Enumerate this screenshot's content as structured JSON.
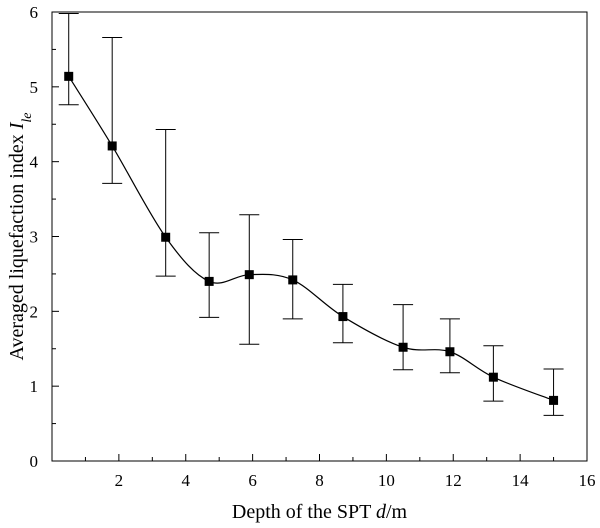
{
  "chart_data": {
    "type": "line",
    "xlabel_main": "Depth of the SPT ",
    "xlabel_var": "d",
    "xlabel_unit": "/m",
    "ylabel_main": "Averaged liquefaction index ",
    "ylabel_var": "I",
    "ylabel_sub": "le",
    "xlim": [
      0,
      16
    ],
    "ylim": [
      0,
      6
    ],
    "x_ticks": [
      2,
      4,
      6,
      8,
      10,
      12,
      14,
      16
    ],
    "y_ticks": [
      0,
      1,
      2,
      3,
      4,
      5,
      6
    ],
    "grid": false,
    "series": [
      {
        "marker": "square",
        "color": "#000000",
        "points": [
          {
            "x": 0.5,
            "y": 5.14,
            "err_low": 4.76,
            "err_high": 5.98
          },
          {
            "x": 1.8,
            "y": 4.21,
            "err_low": 3.71,
            "err_high": 5.66
          },
          {
            "x": 3.4,
            "y": 2.99,
            "err_low": 2.47,
            "err_high": 4.43
          },
          {
            "x": 4.7,
            "y": 2.4,
            "err_low": 1.92,
            "err_high": 3.05
          },
          {
            "x": 5.9,
            "y": 2.49,
            "err_low": 1.56,
            "err_high": 3.29
          },
          {
            "x": 7.2,
            "y": 2.42,
            "err_low": 1.9,
            "err_high": 2.96
          },
          {
            "x": 8.7,
            "y": 1.93,
            "err_low": 1.58,
            "err_high": 2.36
          },
          {
            "x": 10.5,
            "y": 1.52,
            "err_low": 1.22,
            "err_high": 2.09
          },
          {
            "x": 11.9,
            "y": 1.46,
            "err_low": 1.18,
            "err_high": 1.9
          },
          {
            "x": 13.2,
            "y": 1.12,
            "err_low": 0.8,
            "err_high": 1.54
          },
          {
            "x": 15.0,
            "y": 0.81,
            "err_low": 0.61,
            "err_high": 1.23
          }
        ]
      }
    ]
  }
}
